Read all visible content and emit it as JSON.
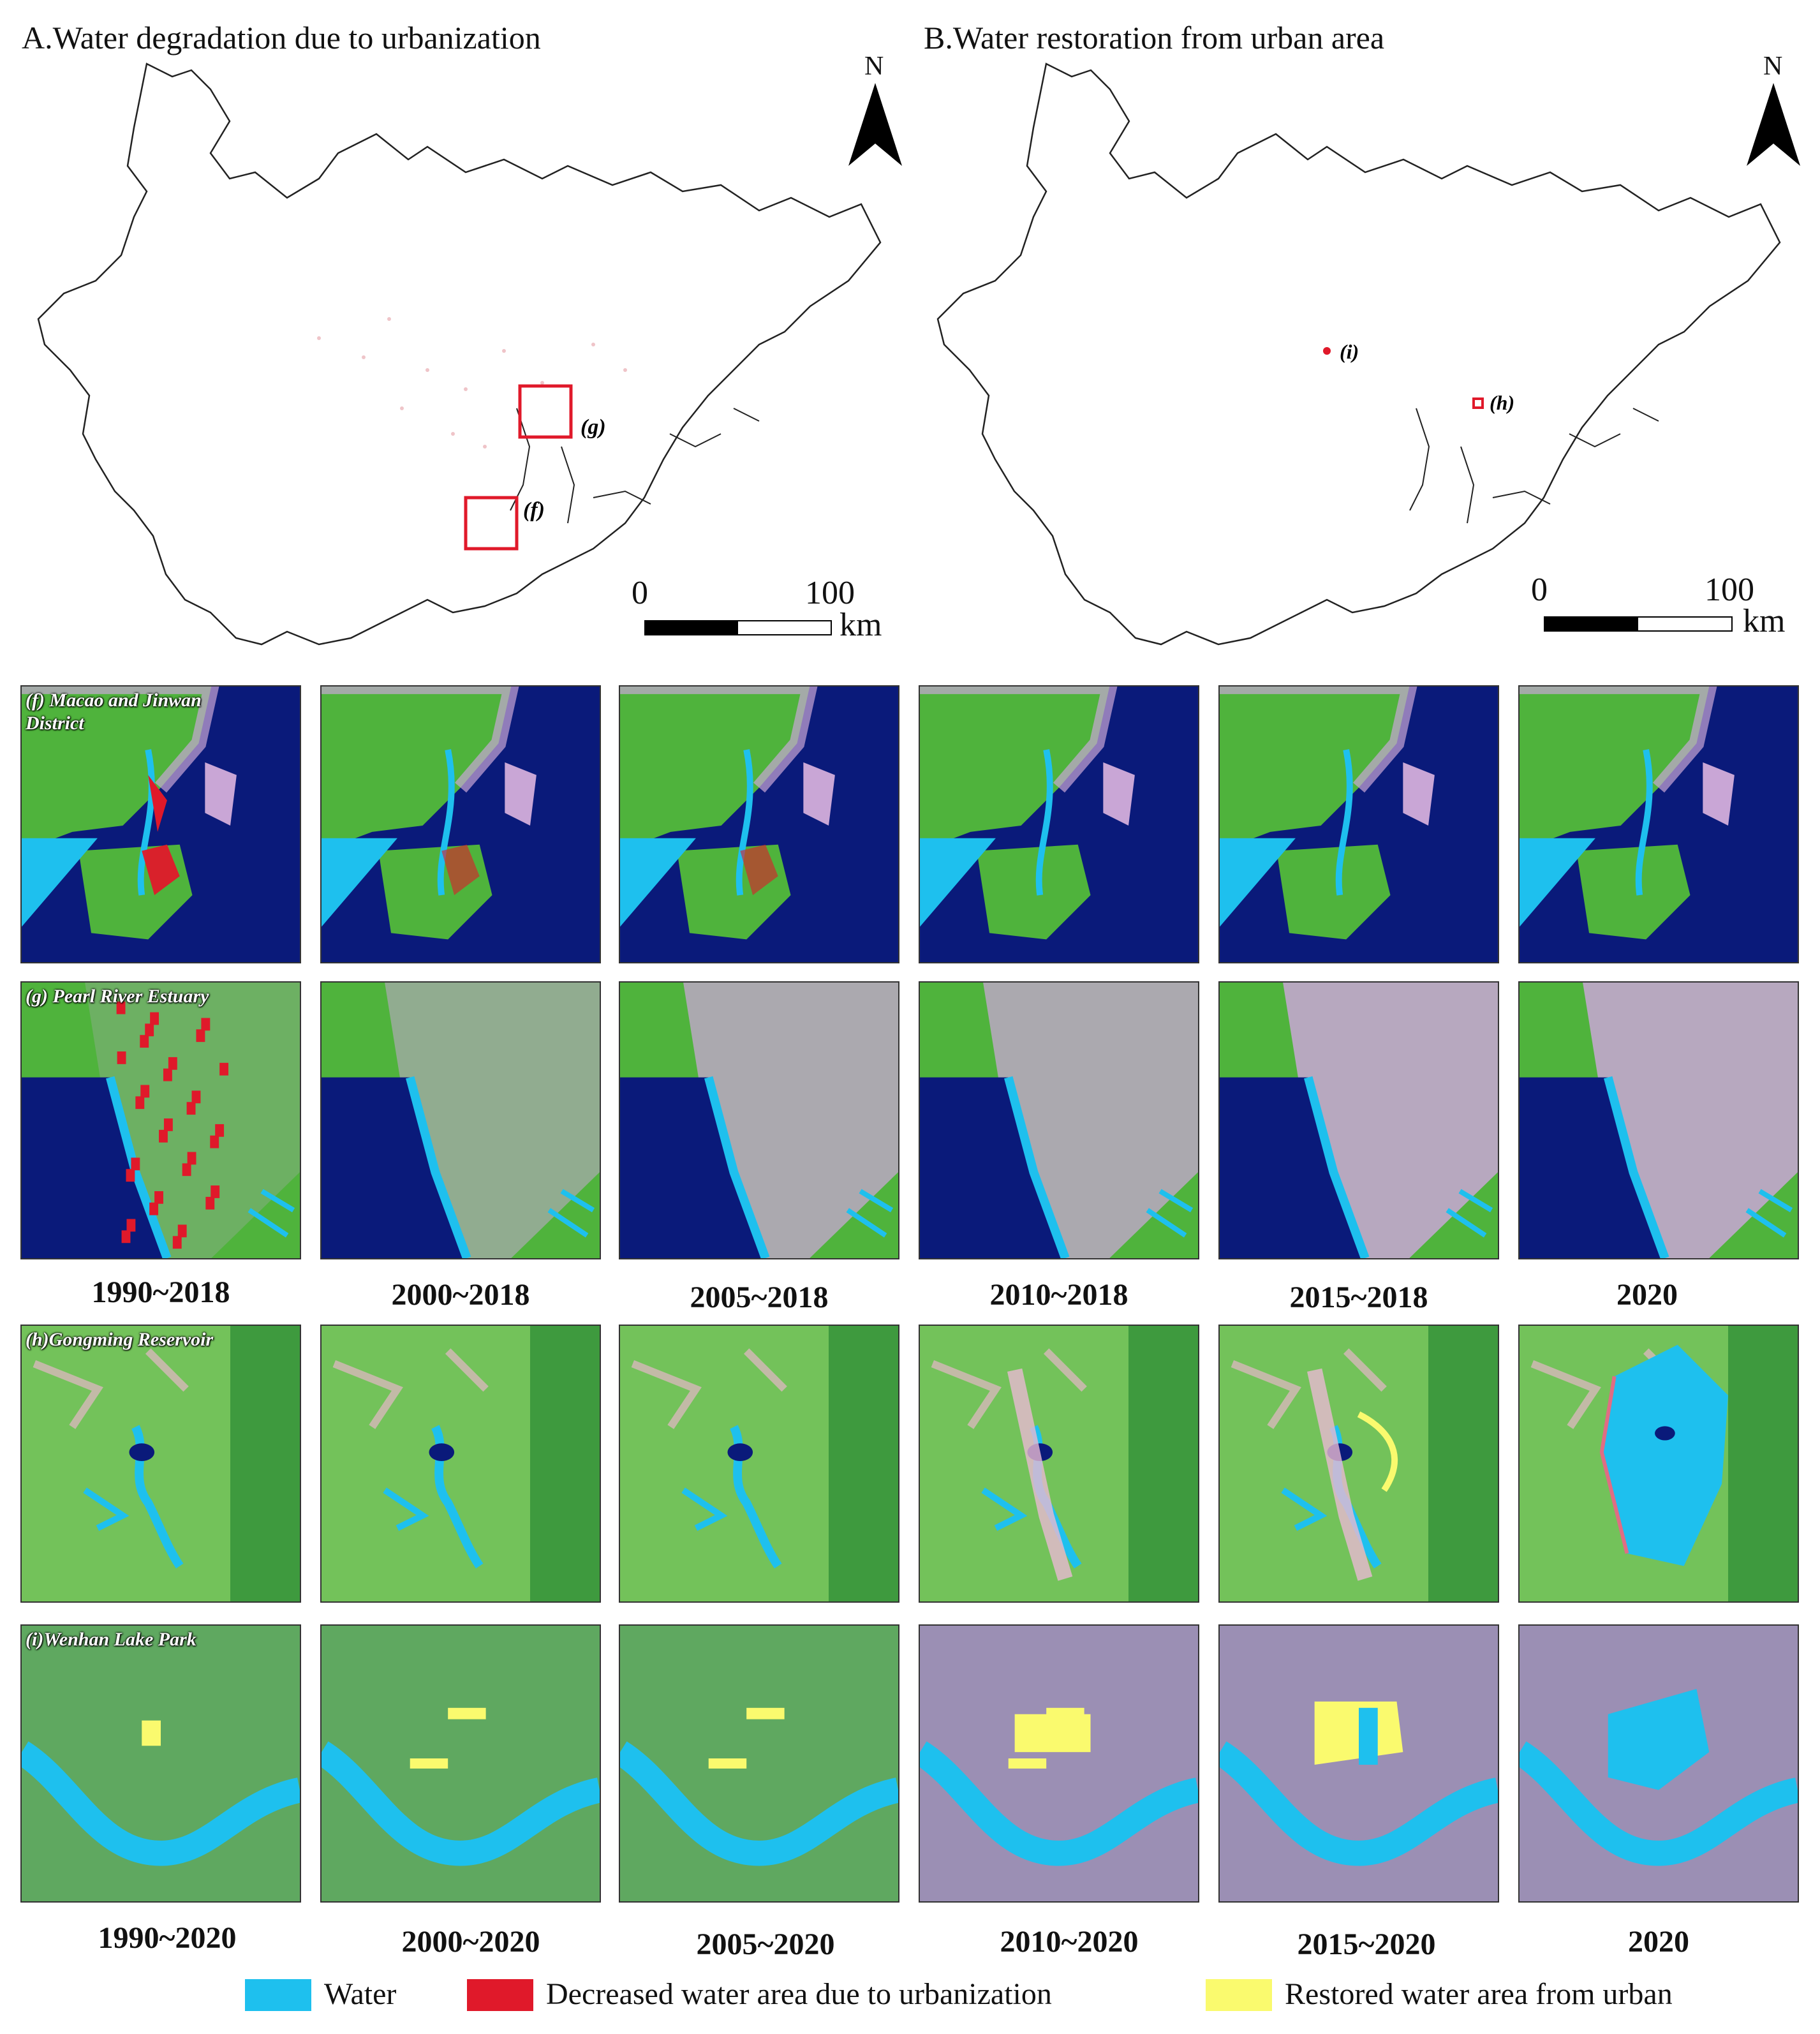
{
  "panel_a": {
    "title": "A.Water degradation due to urbanization",
    "north": "N",
    "scale": {
      "zero": "0",
      "max": "100",
      "unit": "km"
    },
    "boxes": [
      "(g)",
      "(f)"
    ]
  },
  "panel_b": {
    "title": "B.Water restoration from urban area",
    "north": "N",
    "scale": {
      "zero": "0",
      "max": "100",
      "unit": "km"
    },
    "points": [
      "(i)",
      "(h)"
    ]
  },
  "rows": [
    {
      "label": "(f) Macao and Jinwan District",
      "kind": "macao"
    },
    {
      "label": "(g) Pearl River Estuary",
      "kind": "estuary"
    },
    {
      "label": "(h)Gongming Reservoir",
      "kind": "reservoir"
    },
    {
      "label": "(i)Wenhan Lake Park",
      "kind": "park"
    }
  ],
  "periods_top": [
    "1990~2018",
    "2000~2018",
    "2005~2018",
    "2010~2018",
    "2015~2018",
    "2020"
  ],
  "periods_bottom": [
    "1990~2020",
    "2000~2020",
    "2005~2020",
    "2010~2020",
    "2015~2020",
    "2020"
  ],
  "legend": {
    "water": "Water",
    "decreased": "Decreased water area due to urbanization",
    "restored": "Restored water area from urban"
  },
  "colors": {
    "water": "#1ec0ee",
    "decreased": "#e0192a",
    "restored": "#fafa6e",
    "sea": "#0a1a7a",
    "vegetation": "#4fb33c",
    "urban": "#c9a6d6",
    "box": "#e0192a"
  }
}
